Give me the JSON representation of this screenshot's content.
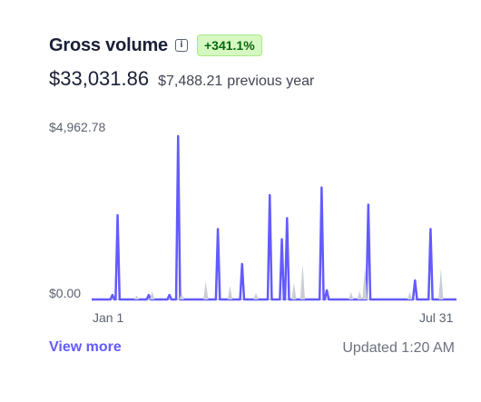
{
  "header": {
    "title": "Gross volume",
    "info_icon": "info-icon",
    "info_glyph": "i",
    "change_badge": "+341.1%"
  },
  "summary": {
    "current_amount": "$33,031.86",
    "previous_amount": "$7,488.21",
    "previous_label": "previous year"
  },
  "colors": {
    "current_series": "#635bff",
    "previous_series": "#c9ced6",
    "baseline": "#c9ced6",
    "badge_bg": "#d7f7c2",
    "badge_text": "#05690d"
  },
  "chart_data": {
    "type": "line",
    "y_max_label": "$4,962.78",
    "y_min_label": "$0.00",
    "x_start_label": "Jan 1",
    "x_end_label": "Jul 31",
    "x_domain": [
      "Jan 1",
      "Jul 31"
    ],
    "ylim": [
      0,
      4962.78
    ],
    "grid": false,
    "series": [
      {
        "role": "current",
        "points": [
          {
            "day": 12,
            "value": 137
          },
          {
            "day": 15,
            "value": 2560
          },
          {
            "day": 33,
            "value": 137
          },
          {
            "day": 45,
            "value": 137
          },
          {
            "day": 50,
            "value": 4962.78
          },
          {
            "day": 73,
            "value": 2140
          },
          {
            "day": 87,
            "value": 1080
          },
          {
            "day": 103,
            "value": 3170
          },
          {
            "day": 110,
            "value": 1830
          },
          {
            "day": 113,
            "value": 2470
          },
          {
            "day": 133,
            "value": 3400
          },
          {
            "day": 136,
            "value": 280
          },
          {
            "day": 160,
            "value": 2880
          },
          {
            "day": 187,
            "value": 580
          },
          {
            "day": 196,
            "value": 2140
          }
        ]
      },
      {
        "role": "previous",
        "points": [
          {
            "day": 26,
            "value": 120
          },
          {
            "day": 35,
            "value": 250
          },
          {
            "day": 52,
            "value": 200
          },
          {
            "day": 66,
            "value": 560
          },
          {
            "day": 80,
            "value": 410
          },
          {
            "day": 95,
            "value": 200
          },
          {
            "day": 117,
            "value": 510
          },
          {
            "day": 122,
            "value": 1080
          },
          {
            "day": 150,
            "value": 220
          },
          {
            "day": 155,
            "value": 250
          },
          {
            "day": 158,
            "value": 990
          },
          {
            "day": 184,
            "value": 220
          },
          {
            "day": 202,
            "value": 950
          }
        ]
      }
    ]
  },
  "footer": {
    "view_more_label": "View more",
    "updated_label": "Updated 1:20 AM"
  }
}
